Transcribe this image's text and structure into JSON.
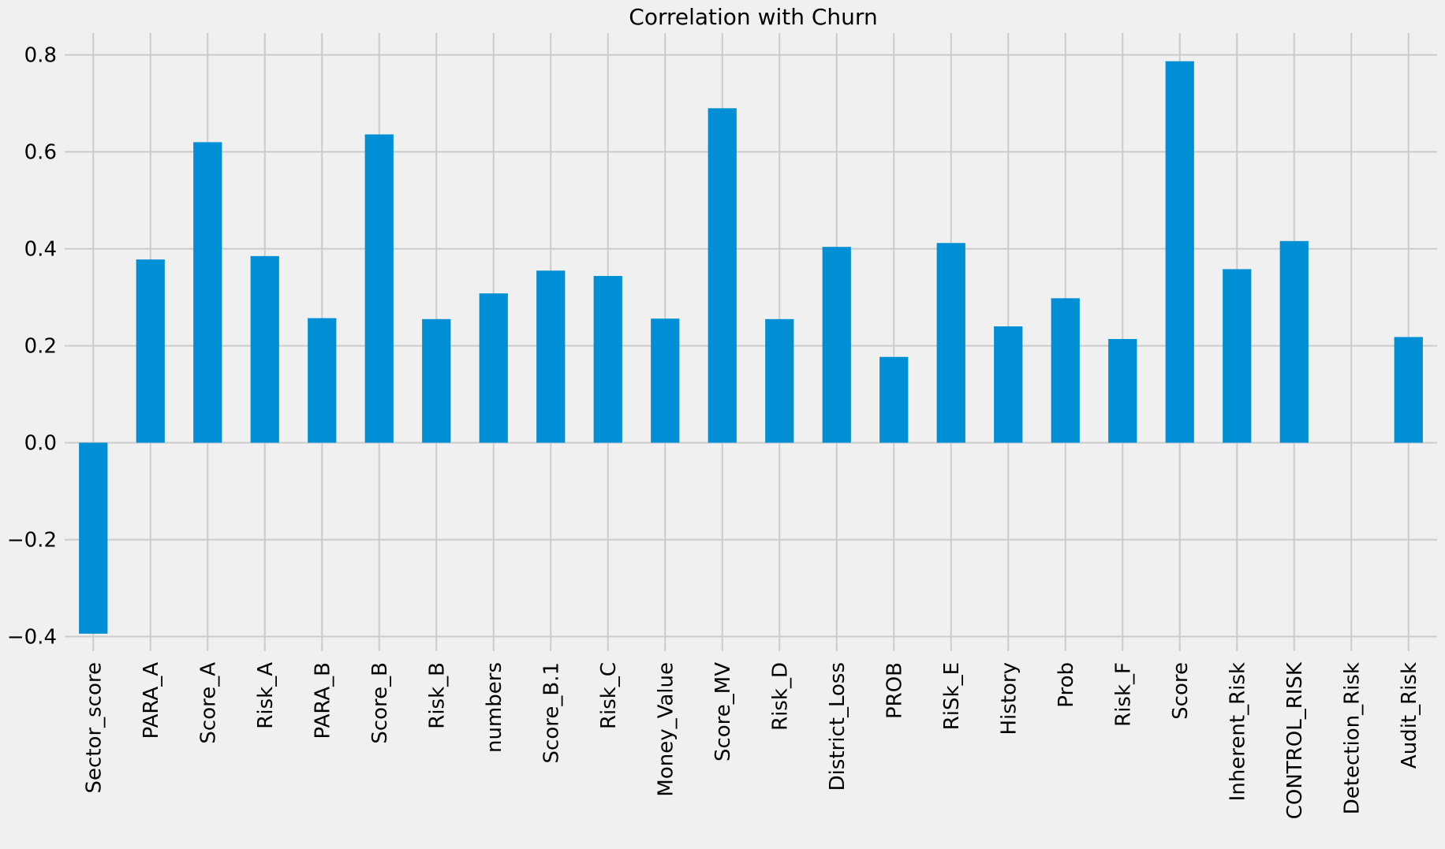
{
  "chart_data": {
    "type": "bar",
    "title": "Correlation with Churn",
    "xlabel": "",
    "ylabel": "",
    "categories": [
      "Sector_score",
      "PARA_A",
      "Score_A",
      "Risk_A",
      "PARA_B",
      "Score_B",
      "Risk_B",
      "numbers",
      "Score_B.1",
      "Risk_C",
      "Money_Value",
      "Score_MV",
      "Risk_D",
      "District_Loss",
      "PROB",
      "RiSk_E",
      "History",
      "Prob",
      "Risk_F",
      "Score",
      "Inherent_Risk",
      "CONTROL_RISK",
      "Detection_Risk",
      "Audit_Risk"
    ],
    "values": [
      -0.394,
      0.378,
      0.62,
      0.385,
      0.257,
      0.636,
      0.255,
      0.308,
      0.355,
      0.344,
      0.256,
      0.69,
      0.255,
      0.404,
      0.177,
      0.412,
      0.24,
      0.298,
      0.214,
      0.787,
      0.358,
      0.416,
      0.0,
      0.218
    ],
    "ylim": [
      -0.43,
      0.845
    ],
    "yticks": [
      -0.4,
      -0.2,
      0.0,
      0.2,
      0.4,
      0.6,
      0.8
    ],
    "ytick_labels": [
      "−0.4",
      "−0.2",
      "0.0",
      "0.2",
      "0.4",
      "0.6",
      "0.8"
    ],
    "grid": true,
    "bar_color": "#008fd5",
    "background_color": "#f0f0f0",
    "grid_color": "#cbcbcb"
  }
}
